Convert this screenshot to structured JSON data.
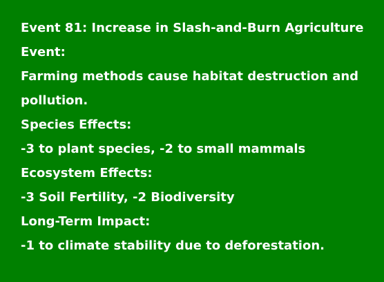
{
  "event": {
    "title": "Event 81: Increase in Slash-and-Burn Agriculture",
    "event_label": "Event:",
    "event_text": "Farming methods cause habitat destruction and pollution.",
    "species_label": "Species Effects:",
    "species_text": "-3 to plant species, -2 to small mammals",
    "ecosystem_label": "Ecosystem Effects:",
    "ecosystem_text": "-3 Soil Fertility, -2 Biodiversity",
    "longterm_label": "Long-Term Impact:",
    "longterm_text": "-1 to climate stability due to deforestation."
  },
  "colors": {
    "background": "#008000",
    "text": "#ffffff"
  }
}
